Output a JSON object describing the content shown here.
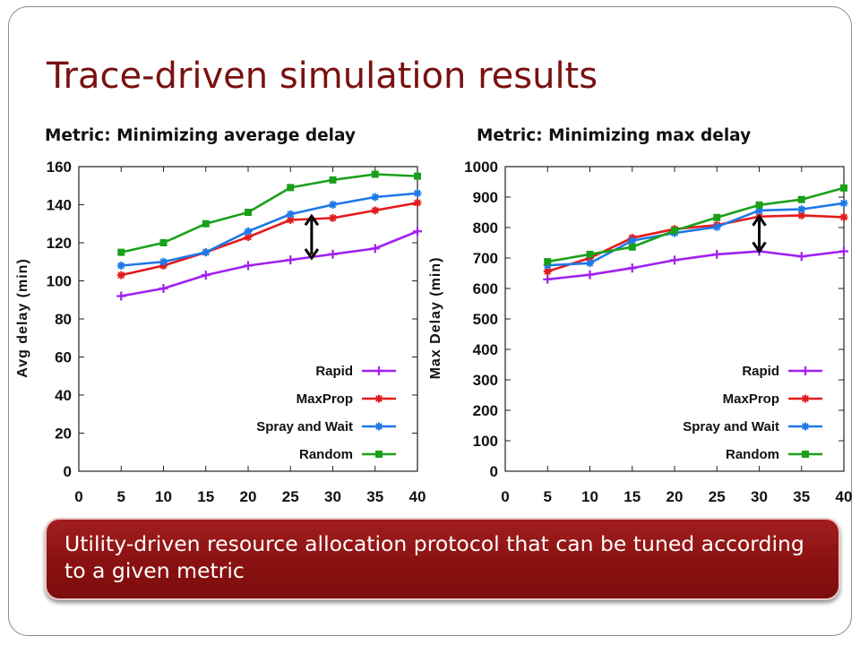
{
  "slide": {
    "title": "Trace-driven simulation results",
    "callout": "Utility-driven resource allocation protocol that can be tuned according to a given metric",
    "accent_color": "#7a1010"
  },
  "chart_data": [
    {
      "type": "line",
      "title": "Metric: Minimizing average delay",
      "xlabel": "",
      "ylabel": "Avg delay (min)",
      "x": [
        5,
        10,
        15,
        20,
        25,
        30,
        35,
        40
      ],
      "xticks": [
        0,
        5,
        10,
        15,
        20,
        25,
        30,
        35,
        40
      ],
      "xlim": [
        0,
        40
      ],
      "yticks": [
        0,
        20,
        40,
        60,
        80,
        100,
        120,
        140,
        160
      ],
      "ylim": [
        0,
        160
      ],
      "legend_position": "bottom-right",
      "series": [
        {
          "name": "Rapid",
          "color": "#a020f0",
          "marker": "plus",
          "values": [
            92,
            96,
            103,
            108,
            111,
            114,
            117,
            126
          ]
        },
        {
          "name": "MaxProp",
          "color": "#e31a1c",
          "marker": "star",
          "values": [
            103,
            108,
            115,
            123,
            132,
            133,
            137,
            141
          ]
        },
        {
          "name": "Spray and Wait",
          "color": "#1e78e6",
          "marker": "star",
          "values": [
            108,
            110,
            115,
            126,
            135,
            140,
            144,
            146
          ]
        },
        {
          "name": "Random",
          "color": "#1aa01a",
          "marker": "square",
          "values": [
            115,
            120,
            130,
            136,
            149,
            153,
            156,
            155
          ]
        }
      ],
      "annotation": {
        "type": "double-arrow",
        "x": 27.5,
        "y_from": 112,
        "y_to": 134
      }
    },
    {
      "type": "line",
      "title": "Metric: Minimizing max delay",
      "xlabel": "",
      "ylabel": "Max Delay (min)",
      "x": [
        5,
        10,
        15,
        20,
        25,
        30,
        35,
        40
      ],
      "xticks": [
        0,
        5,
        10,
        15,
        20,
        25,
        30,
        35,
        40
      ],
      "xlim": [
        0,
        40
      ],
      "yticks": [
        0,
        100,
        200,
        300,
        400,
        500,
        600,
        700,
        800,
        900,
        1000
      ],
      "ylim": [
        0,
        1000
      ],
      "legend_position": "bottom-right",
      "series": [
        {
          "name": "Rapid",
          "color": "#a020f0",
          "marker": "plus",
          "values": [
            630,
            645,
            667,
            693,
            712,
            722,
            705,
            722
          ]
        },
        {
          "name": "MaxProp",
          "color": "#e31a1c",
          "marker": "star",
          "values": [
            656,
            700,
            766,
            795,
            808,
            836,
            840,
            834
          ]
        },
        {
          "name": "Spray and Wait",
          "color": "#1e78e6",
          "marker": "star",
          "values": [
            676,
            683,
            757,
            782,
            802,
            856,
            860,
            880
          ]
        },
        {
          "name": "Random",
          "color": "#1aa01a",
          "marker": "square",
          "values": [
            688,
            712,
            736,
            790,
            833,
            874,
            892,
            930
          ]
        }
      ],
      "annotation": {
        "type": "double-arrow",
        "x": 30,
        "y_from": 722,
        "y_to": 836
      }
    }
  ]
}
